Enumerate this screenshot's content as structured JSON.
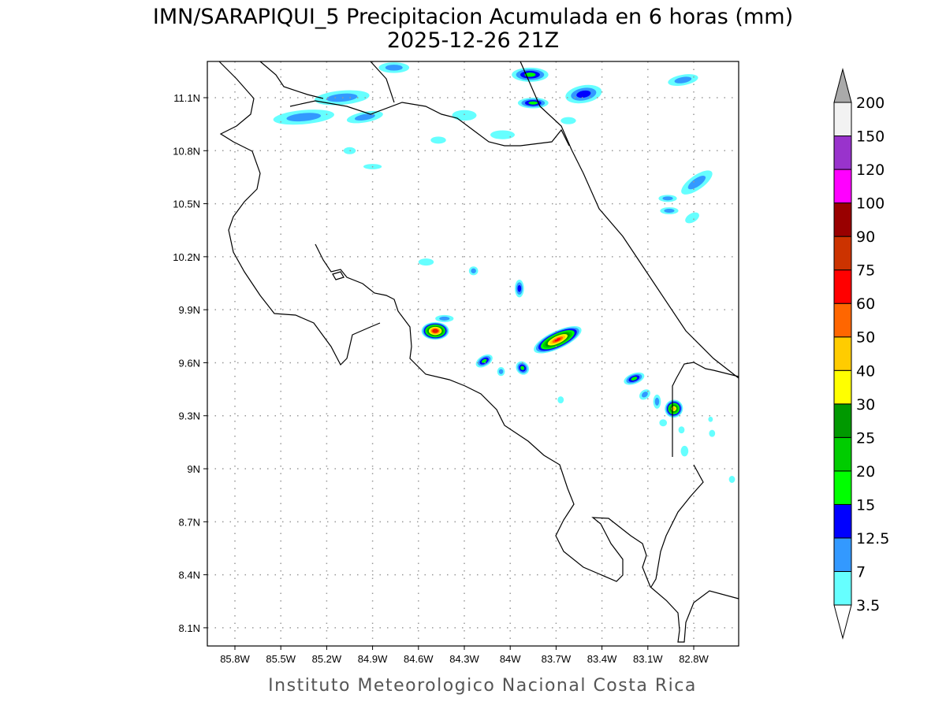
{
  "title": "IMN/SARAPIQUI_5 Precipitacion Acumulada en 6 horas (mm)",
  "subtitle": "2025-12-26 21Z",
  "footer": "Instituto Meteorologico Nacional Costa Rica",
  "axes": {
    "lon_ticks": [
      {
        "v": 85.8,
        "label": "85.8W"
      },
      {
        "v": 85.5,
        "label": "85.5W"
      },
      {
        "v": 85.2,
        "label": "85.2W"
      },
      {
        "v": 84.9,
        "label": "84.9W"
      },
      {
        "v": 84.6,
        "label": "84.6W"
      },
      {
        "v": 84.3,
        "label": "84.3W"
      },
      {
        "v": 84.0,
        "label": "84W"
      },
      {
        "v": 83.7,
        "label": "83.7W"
      },
      {
        "v": 83.4,
        "label": "83.4W"
      },
      {
        "v": 83.1,
        "label": "83.1W"
      },
      {
        "v": 82.8,
        "label": "82.8W"
      }
    ],
    "lat_ticks": [
      {
        "v": 11.1,
        "label": "11.1N"
      },
      {
        "v": 10.8,
        "label": "10.8N"
      },
      {
        "v": 10.5,
        "label": "10.5N"
      },
      {
        "v": 10.2,
        "label": "10.2N"
      },
      {
        "v": 9.9,
        "label": "9.9N"
      },
      {
        "v": 9.6,
        "label": "9.6N"
      },
      {
        "v": 9.3,
        "label": "9.3N"
      },
      {
        "v": 9.0,
        "label": "9N"
      },
      {
        "v": 8.7,
        "label": "8.7N"
      },
      {
        "v": 8.4,
        "label": "8.4N"
      },
      {
        "v": 8.1,
        "label": "8.1N"
      }
    ]
  },
  "colorbar": {
    "levels": [
      "3.5",
      "7",
      "12.5",
      "15",
      "20",
      "25",
      "30",
      "40",
      "50",
      "60",
      "75",
      "90",
      "100",
      "120",
      "150",
      "200"
    ],
    "colors": [
      "#66ffff",
      "#3399ff",
      "#0000ff",
      "#00ff00",
      "#00cc00",
      "#009900",
      "#ffff00",
      "#ffcc00",
      "#ff6600",
      "#ff0000",
      "#cc3300",
      "#990000",
      "#ff00ff",
      "#9933cc",
      "#f2f2f2",
      "#aaaaaa"
    ]
  },
  "chart_data": {
    "type": "heatmap",
    "title": "IMN/SARAPIQUI_5 Precipitacion Acumulada en 6 horas (mm)",
    "units": "mm",
    "lon_range": [
      85.98,
      82.5
    ],
    "lat_range": [
      8.0,
      11.3
    ],
    "grid": true,
    "legend_placement": "right",
    "cells": [
      {
        "lon": 84.49,
        "lat": 9.78,
        "peak": 75,
        "rx": 0.09,
        "ry": 0.05,
        "rot": 0
      },
      {
        "lon": 83.69,
        "lat": 9.73,
        "peak": 60,
        "rx": 0.17,
        "ry": 0.05,
        "rot": -25
      },
      {
        "lon": 82.93,
        "lat": 9.34,
        "peak": 40,
        "rx": 0.06,
        "ry": 0.05,
        "rot": -30
      },
      {
        "lon": 84.17,
        "lat": 9.61,
        "peak": 15,
        "rx": 0.06,
        "ry": 0.03,
        "rot": -30
      },
      {
        "lon": 83.92,
        "lat": 9.57,
        "peak": 15,
        "rx": 0.04,
        "ry": 0.04,
        "rot": -40
      },
      {
        "lon": 83.94,
        "lat": 10.02,
        "peak": 12.5,
        "rx": 0.03,
        "ry": 0.05,
        "rot": 0
      },
      {
        "lon": 84.24,
        "lat": 10.12,
        "peak": 7,
        "rx": 0.03,
        "ry": 0.025,
        "rot": 0
      },
      {
        "lon": 84.43,
        "lat": 9.85,
        "peak": 7,
        "rx": 0.06,
        "ry": 0.02,
        "rot": 0
      },
      {
        "lon": 84.06,
        "lat": 9.55,
        "peak": 7,
        "rx": 0.025,
        "ry": 0.025,
        "rot": 0
      },
      {
        "lon": 83.19,
        "lat": 9.51,
        "peak": 15,
        "rx": 0.07,
        "ry": 0.03,
        "rot": -20
      },
      {
        "lon": 83.12,
        "lat": 9.42,
        "peak": 7,
        "rx": 0.04,
        "ry": 0.025,
        "rot": -40
      },
      {
        "lon": 83.04,
        "lat": 9.38,
        "peak": 7,
        "rx": 0.025,
        "ry": 0.04,
        "rot": 0
      },
      {
        "lon": 83.87,
        "lat": 11.23,
        "peak": 15,
        "rx": 0.12,
        "ry": 0.04,
        "rot": 0
      },
      {
        "lon": 83.85,
        "lat": 11.07,
        "peak": 15,
        "rx": 0.1,
        "ry": 0.03,
        "rot": 0
      },
      {
        "lon": 83.52,
        "lat": 11.12,
        "peak": 12.5,
        "rx": 0.12,
        "ry": 0.05,
        "rot": -10
      },
      {
        "lon": 84.76,
        "lat": 11.27,
        "peak": 7,
        "rx": 0.1,
        "ry": 0.03,
        "rot": 0
      },
      {
        "lon": 85.1,
        "lat": 11.1,
        "peak": 7,
        "rx": 0.18,
        "ry": 0.04,
        "rot": -5
      },
      {
        "lon": 85.35,
        "lat": 10.99,
        "peak": 7,
        "rx": 0.2,
        "ry": 0.04,
        "rot": -5
      },
      {
        "lon": 84.95,
        "lat": 10.99,
        "peak": 7,
        "rx": 0.12,
        "ry": 0.03,
        "rot": -10
      },
      {
        "lon": 84.3,
        "lat": 11.0,
        "peak": 3.5,
        "rx": 0.08,
        "ry": 0.03,
        "rot": 0
      },
      {
        "lon": 84.05,
        "lat": 10.89,
        "peak": 3.5,
        "rx": 0.08,
        "ry": 0.025,
        "rot": 0
      },
      {
        "lon": 83.62,
        "lat": 10.97,
        "peak": 3.5,
        "rx": 0.05,
        "ry": 0.02,
        "rot": 0
      },
      {
        "lon": 84.47,
        "lat": 10.86,
        "peak": 3.5,
        "rx": 0.05,
        "ry": 0.02,
        "rot": 0
      },
      {
        "lon": 85.05,
        "lat": 10.8,
        "peak": 3.5,
        "rx": 0.04,
        "ry": 0.02,
        "rot": 0
      },
      {
        "lon": 84.9,
        "lat": 10.71,
        "peak": 3.5,
        "rx": 0.06,
        "ry": 0.015,
        "rot": 0
      },
      {
        "lon": 82.78,
        "lat": 10.62,
        "peak": 7,
        "rx": 0.12,
        "ry": 0.04,
        "rot": -35
      },
      {
        "lon": 82.97,
        "lat": 10.53,
        "peak": 7,
        "rx": 0.06,
        "ry": 0.02,
        "rot": 0
      },
      {
        "lon": 82.96,
        "lat": 10.46,
        "peak": 7,
        "rx": 0.06,
        "ry": 0.02,
        "rot": 0
      },
      {
        "lon": 82.81,
        "lat": 10.42,
        "peak": 3.5,
        "rx": 0.05,
        "ry": 0.025,
        "rot": -30
      },
      {
        "lon": 82.87,
        "lat": 11.2,
        "peak": 7,
        "rx": 0.1,
        "ry": 0.03,
        "rot": -10
      },
      {
        "lon": 84.55,
        "lat": 10.17,
        "peak": 3.5,
        "rx": 0.05,
        "ry": 0.02,
        "rot": 0
      },
      {
        "lon": 83.67,
        "lat": 9.39,
        "peak": 3.5,
        "rx": 0.02,
        "ry": 0.02,
        "rot": 0
      },
      {
        "lon": 83.0,
        "lat": 9.26,
        "peak": 3.5,
        "rx": 0.025,
        "ry": 0.02,
        "rot": 0
      },
      {
        "lon": 82.86,
        "lat": 9.1,
        "peak": 3.5,
        "rx": 0.025,
        "ry": 0.03,
        "rot": 0
      },
      {
        "lon": 82.88,
        "lat": 9.22,
        "peak": 3.5,
        "rx": 0.02,
        "ry": 0.02,
        "rot": 0
      },
      {
        "lon": 82.68,
        "lat": 9.2,
        "peak": 3.5,
        "rx": 0.02,
        "ry": 0.02,
        "rot": 0
      },
      {
        "lon": 82.69,
        "lat": 9.28,
        "peak": 3.5,
        "rx": 0.015,
        "ry": 0.015,
        "rot": 0
      },
      {
        "lon": 82.55,
        "lat": 8.94,
        "peak": 3.5,
        "rx": 0.02,
        "ry": 0.02,
        "rot": 0
      }
    ]
  }
}
